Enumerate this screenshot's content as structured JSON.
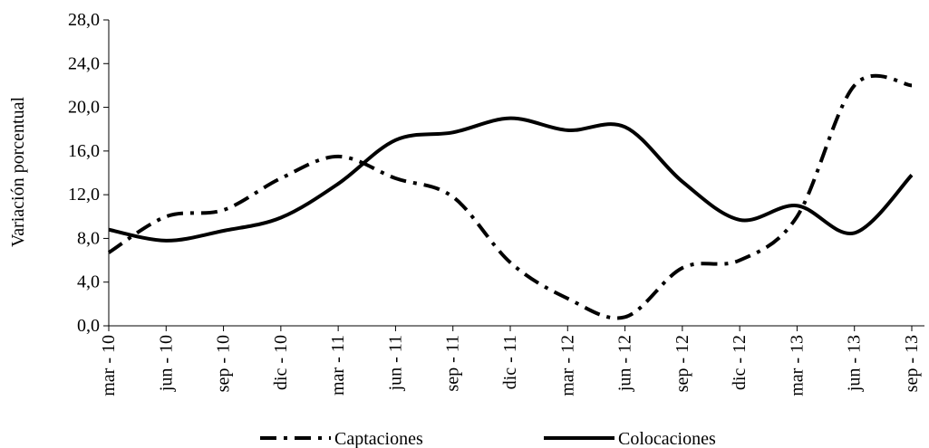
{
  "chart_data": {
    "type": "line",
    "y_label": "Variación  porcentual",
    "categories": [
      "mar - 10",
      "jun - 10",
      "sep - 10",
      "dic - 10",
      "mar - 11",
      "jun - 11",
      "sep - 11",
      "dic - 11",
      "mar - 12",
      "jun - 12",
      "sep - 12",
      "dic - 12",
      "mar - 13",
      "jun - 13",
      "sep - 13"
    ],
    "series": [
      {
        "name": "Captaciones",
        "color": "#000000",
        "dash": "dash-dot",
        "values": [
          6.7,
          10.0,
          10.6,
          13.5,
          15.5,
          13.5,
          11.8,
          5.8,
          2.5,
          0.8,
          5.3,
          6.0,
          10.0,
          22.0,
          22.0
        ]
      },
      {
        "name": "Colocaciones",
        "color": "#000000",
        "dash": "solid",
        "values": [
          8.8,
          7.8,
          8.7,
          9.9,
          13.0,
          17.0,
          17.7,
          19.0,
          17.9,
          18.2,
          13.2,
          9.7,
          11.0,
          8.5,
          13.8
        ]
      }
    ],
    "ylim": [
      0,
      28
    ],
    "yticks": [
      {
        "value": 0,
        "label": "0,0"
      },
      {
        "value": 4,
        "label": "4,0"
      },
      {
        "value": 8,
        "label": "8,0"
      },
      {
        "value": 12,
        "label": "12,0"
      },
      {
        "value": 16,
        "label": "16,0"
      },
      {
        "value": 20,
        "label": "20,0"
      },
      {
        "value": 24,
        "label": "24,0"
      },
      {
        "value": 28,
        "label": "28,0"
      }
    ],
    "legend": "bottom"
  }
}
